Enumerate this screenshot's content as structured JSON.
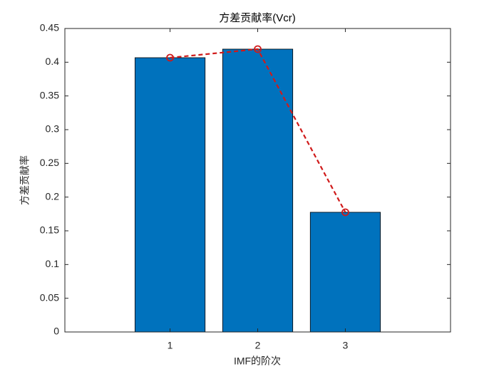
{
  "chart_data": {
    "type": "bar",
    "title": "方差贡献率(Vcr)",
    "xlabel": "IMF的阶次",
    "ylabel": "方差贡献率",
    "x": [
      1,
      2,
      3
    ],
    "series": [
      {
        "type": "bar",
        "color": "#0072bd",
        "values": [
          0.4067,
          0.4194,
          0.1775
        ]
      },
      {
        "type": "line",
        "color": "#d01a1a",
        "linestyle": "dashed",
        "marker": "circle",
        "values": [
          0.4067,
          0.4194,
          0.1775
        ]
      }
    ],
    "bar_width": 0.8,
    "xlim": [
      -0.2,
      4.2
    ],
    "xticks": [
      1,
      2,
      3
    ],
    "ylim": [
      0,
      0.45
    ],
    "yticks": [
      0,
      0.05,
      0.1,
      0.15,
      0.2,
      0.25,
      0.3,
      0.35,
      0.4,
      0.45
    ],
    "grid": false
  }
}
